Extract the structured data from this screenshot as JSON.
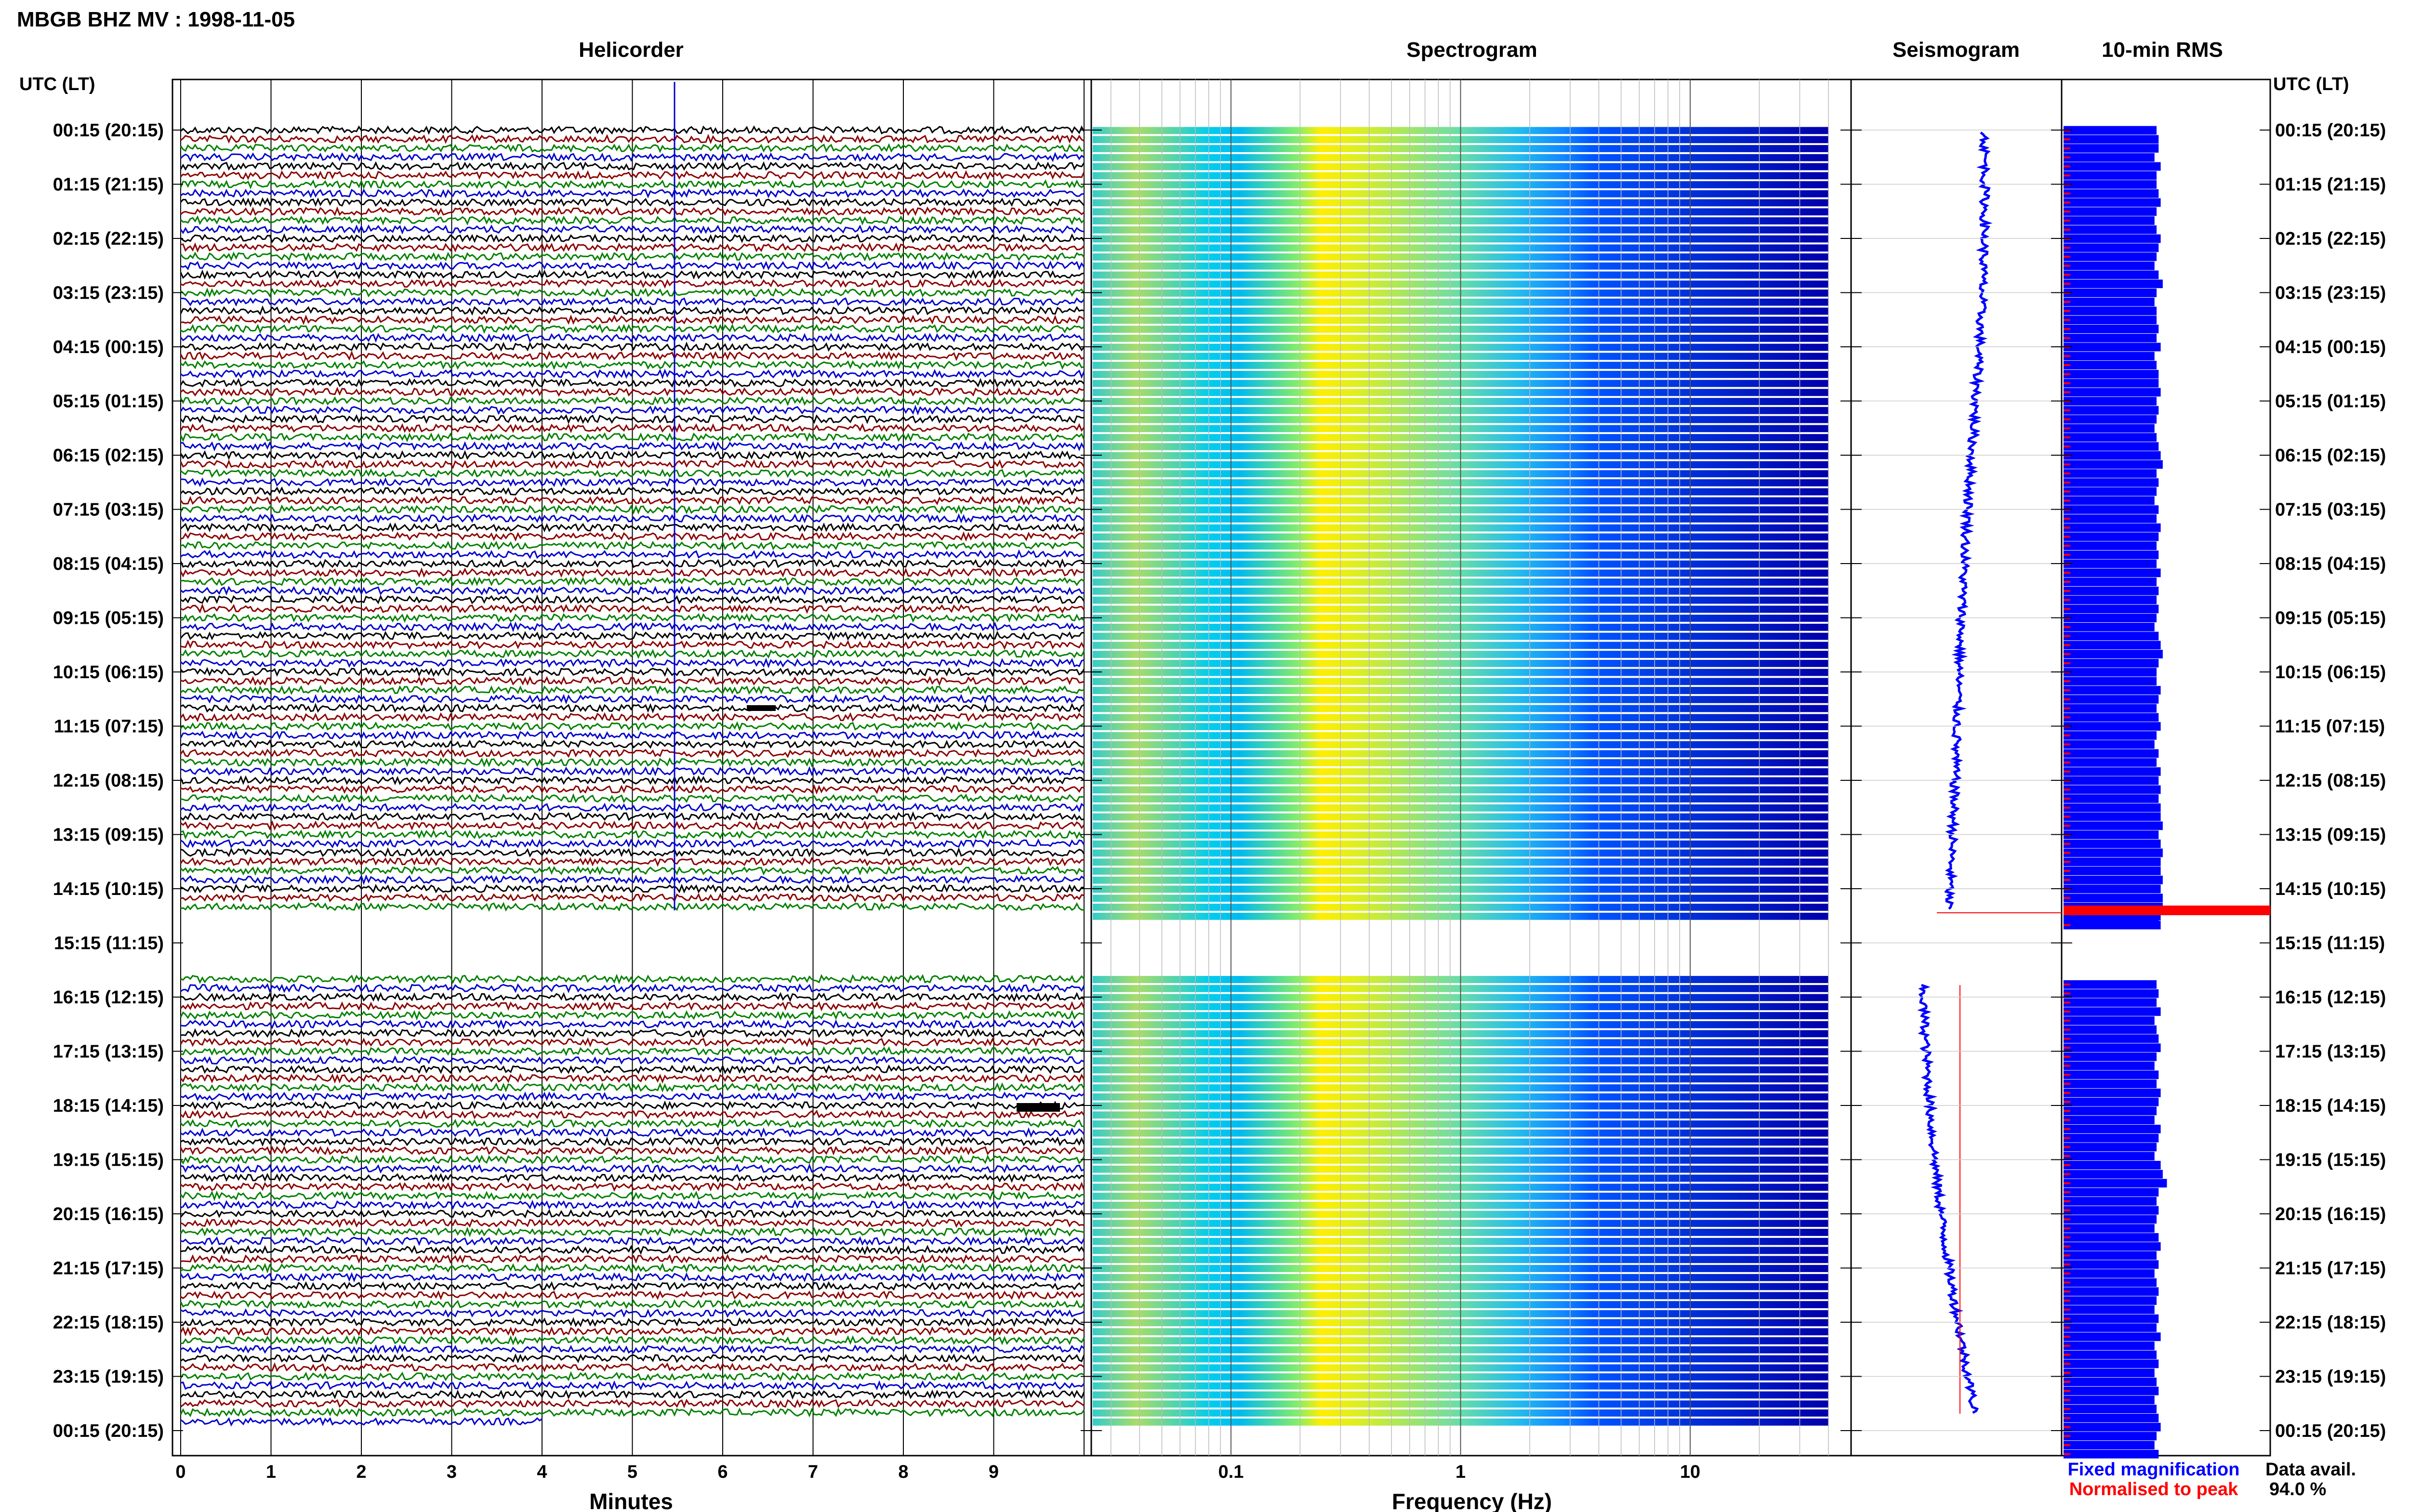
{
  "title": "MBGB BHZ MV : 1998-11-05",
  "panels": {
    "helicorder": "Helicorder",
    "spectrogram": "Spectrogram",
    "seismogram": "Seismogram",
    "rms": "10-min RMS"
  },
  "axis_header": "UTC (LT)",
  "time_labels": [
    "00:15 (20:15)",
    "01:15 (21:15)",
    "02:15 (22:15)",
    "03:15 (23:15)",
    "04:15 (00:15)",
    "05:15 (01:15)",
    "06:15 (02:15)",
    "07:15 (03:15)",
    "08:15 (04:15)",
    "09:15 (05:15)",
    "10:15 (06:15)",
    "11:15 (07:15)",
    "12:15 (08:15)",
    "13:15 (09:15)",
    "14:15 (10:15)",
    "15:15 (11:15)",
    "16:15 (12:15)",
    "17:15 (13:15)",
    "18:15 (14:15)",
    "19:15 (15:15)",
    "20:15 (16:15)",
    "21:15 (17:15)",
    "22:15 (18:15)",
    "23:15 (19:15)",
    "00:15 (20:15)"
  ],
  "helicorder_xlabel": "Minutes",
  "minute_ticks": [
    "0",
    "1",
    "2",
    "3",
    "4",
    "5",
    "6",
    "7",
    "8",
    "9"
  ],
  "spectrogram_xlabel": "Frequency (Hz)",
  "freq_ticks": [
    "0.1",
    "1",
    "10"
  ],
  "legend": {
    "fixed": "Fixed magnification",
    "normalised": "Normalised to peak",
    "fixed_color": "#0000ff",
    "normalised_color": "#ff0000"
  },
  "data_avail": {
    "label": "Data avail.",
    "value": "94.0 %"
  },
  "colors": {
    "trace_cycle": [
      "#000000",
      "#8b0000",
      "#008000",
      "#0000cd"
    ],
    "rms_bar": "#0000ff",
    "rms_marker": "#ff0000",
    "spectrogram_colormap": [
      "#0000aa",
      "#0055ff",
      "#00aaff",
      "#33ddcc",
      "#99ee66",
      "#ffff00"
    ]
  },
  "chart_data": [
    {
      "type": "line",
      "title": "Helicorder",
      "xlabel": "Minutes",
      "xlim": [
        0,
        10
      ],
      "rows_per_hour": 6,
      "gap_hours_utc": [
        14.9,
        15.9
      ],
      "events_utc": [
        "11:00",
        "18:05"
      ]
    },
    {
      "type": "heatmap",
      "title": "Spectrogram",
      "xlabel": "Frequency (Hz)",
      "xscale": "log",
      "xlim": [
        0.025,
        40
      ],
      "colormap": "jet"
    },
    {
      "type": "line",
      "title": "Seismogram",
      "series": [
        {
          "name": "Fixed magnification"
        },
        {
          "name": "Normalised to peak"
        }
      ]
    },
    {
      "type": "bar",
      "title": "10-min RMS",
      "orientation": "horizontal",
      "values_rel_before_gap": [
        0.45,
        0.46,
        0.46,
        0.44,
        0.47,
        0.45,
        0.45,
        0.46,
        0.47,
        0.45,
        0.44,
        0.45,
        0.47,
        0.46,
        0.45,
        0.44,
        0.46,
        0.48,
        0.45,
        0.44,
        0.45,
        0.45,
        0.46,
        0.45,
        0.47,
        0.44,
        0.45,
        0.46,
        0.46,
        0.47,
        0.45,
        0.46,
        0.45,
        0.44,
        0.45,
        0.46,
        0.47,
        0.48,
        0.45,
        0.46,
        0.45,
        0.44,
        0.46,
        0.45,
        0.47,
        0.46,
        0.45,
        0.46,
        0.45,
        0.47,
        0.45,
        0.46,
        0.45,
        0.46,
        0.45,
        0.44,
        0.46,
        0.47,
        0.48,
        0.46,
        0.45,
        0.45,
        0.47,
        0.46,
        0.45,
        0.46,
        0.47,
        0.45,
        0.44,
        0.46,
        0.45,
        0.47,
        0.46,
        0.47,
        0.46,
        0.47,
        0.47,
        0.48,
        0.46,
        0.47,
        0.48,
        0.47,
        0.47,
        0.48,
        0.47,
        0.48,
        0.48,
        0.47,
        0.47
      ],
      "spike_near_gap": 1.0,
      "values_rel_after_gap": [
        0.45,
        0.46,
        0.45,
        0.47,
        0.44,
        0.45,
        0.46,
        0.47,
        0.45,
        0.44,
        0.46,
        0.45,
        0.47,
        0.46,
        0.45,
        0.44,
        0.47,
        0.46,
        0.45,
        0.44,
        0.47,
        0.48,
        0.5,
        0.46,
        0.45,
        0.46,
        0.45,
        0.44,
        0.46,
        0.47,
        0.45,
        0.46,
        0.44,
        0.45,
        0.46,
        0.45,
        0.44,
        0.46,
        0.45,
        0.47,
        0.44,
        0.45,
        0.46,
        0.44,
        0.45,
        0.46,
        0.44,
        0.45,
        0.46,
        0.47,
        0.45,
        0.44,
        0.46
      ]
    }
  ]
}
